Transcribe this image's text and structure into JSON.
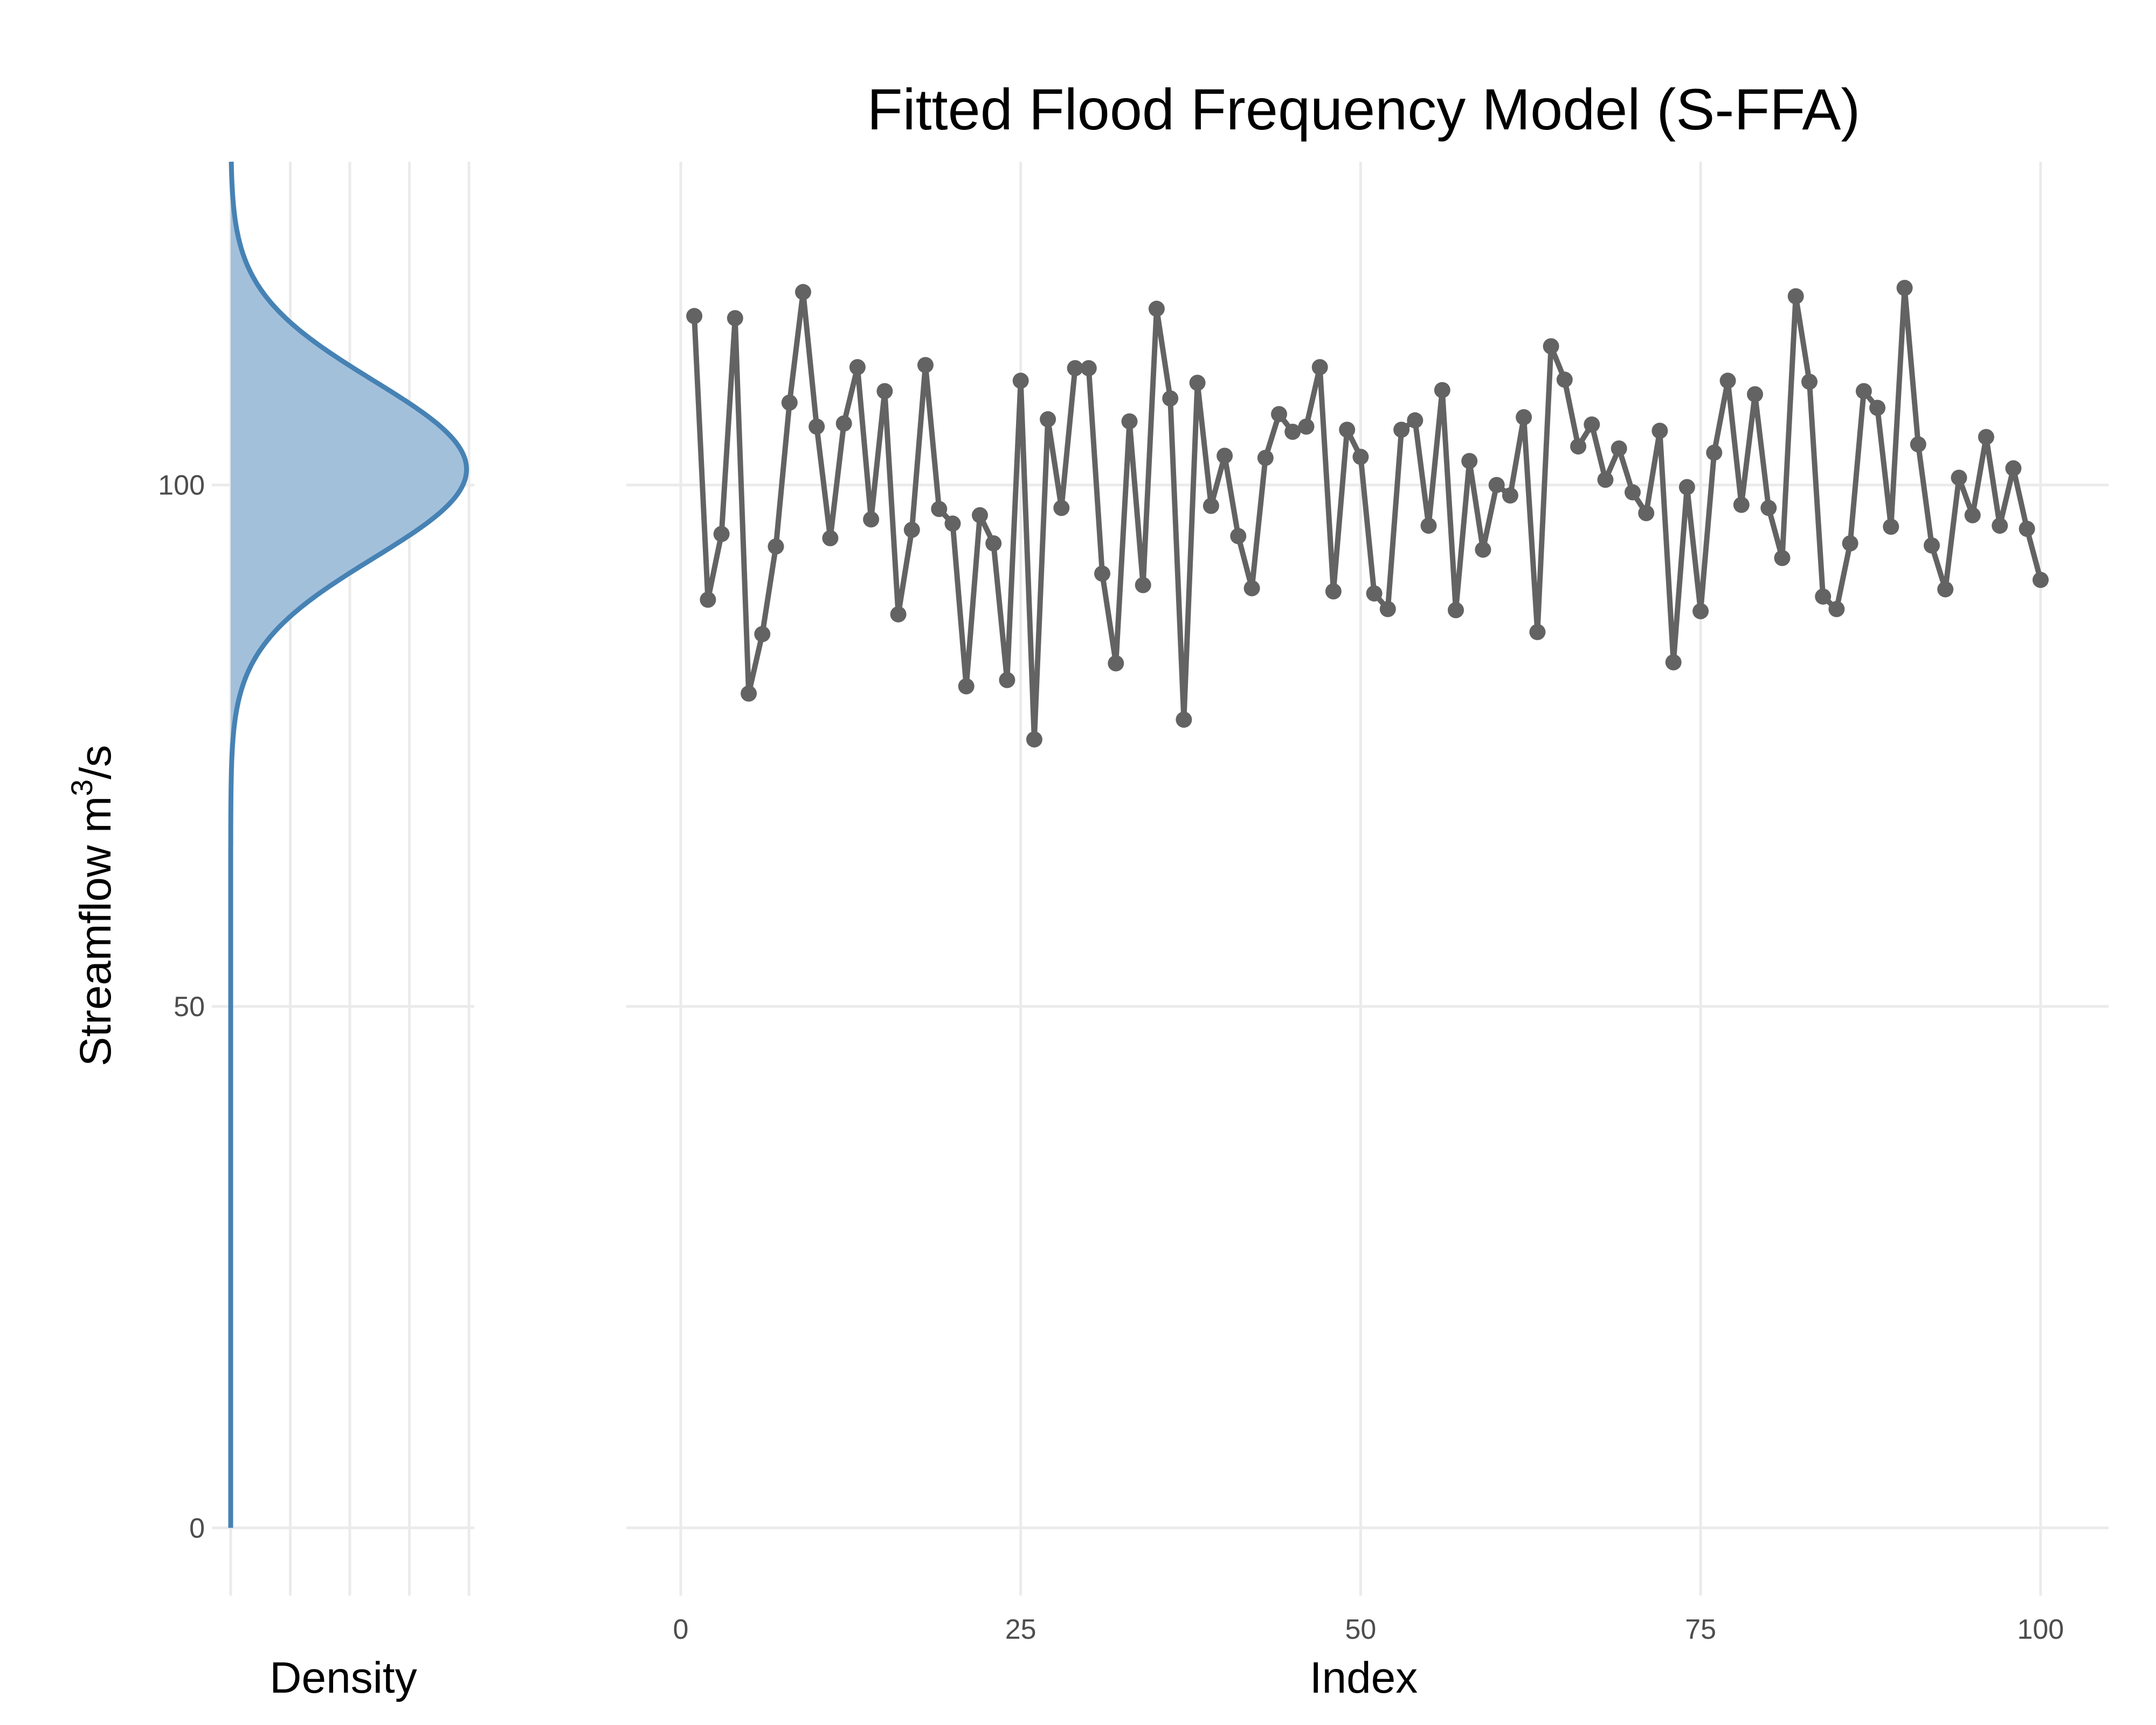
{
  "title": "Fitted Flood Frequency Model (S-FFA)",
  "colors": {
    "series": "#636363",
    "density_line": "#4682b4",
    "density_fill": "#a3c0db",
    "grid": "#ebebeb"
  },
  "chart_data": [
    {
      "type": "area",
      "id": "density-panel",
      "xlabel": "Density",
      "ylabel_main": "Streamflow m",
      "ylabel_sup": "3",
      "ylabel_tail": "/s",
      "ylim": [
        -6.5,
        131
      ],
      "yticks": [
        0,
        50,
        100
      ],
      "density_distribution": {
        "family": "normal",
        "mean": 101.5,
        "sd": 8.5
      },
      "fill_range": [
        72,
        131
      ],
      "line_range": [
        0,
        131
      ],
      "grid": true
    },
    {
      "type": "line",
      "id": "series-panel",
      "xlabel": "Index",
      "ylabel": "",
      "xlim": [
        -4,
        105
      ],
      "ylim": [
        -6.5,
        131
      ],
      "xticks": [
        0,
        25,
        50,
        75,
        100
      ],
      "yticks": [
        0,
        50,
        100
      ],
      "grid": true,
      "x": [
        1,
        2,
        3,
        4,
        5,
        6,
        7,
        8,
        9,
        10,
        11,
        12,
        13,
        14,
        15,
        16,
        17,
        18,
        19,
        20,
        21,
        22,
        23,
        24,
        25,
        26,
        27,
        28,
        29,
        30,
        31,
        32,
        33,
        34,
        35,
        36,
        37,
        38,
        39,
        40,
        41,
        42,
        43,
        44,
        45,
        46,
        47,
        48,
        49,
        50,
        51,
        52,
        53,
        54,
        55,
        56,
        57,
        58,
        59,
        60,
        61,
        62,
        63,
        64,
        65,
        66,
        67,
        68,
        69,
        70,
        71,
        72,
        73,
        74,
        75,
        76,
        77,
        78,
        79,
        80,
        81,
        82,
        83,
        84,
        85,
        86,
        87,
        88,
        89,
        90,
        91,
        92,
        93,
        94,
        95,
        96,
        97,
        98,
        99,
        100
      ],
      "values": [
        116.2,
        89.0,
        95.3,
        116.0,
        80.0,
        85.7,
        94.1,
        107.9,
        118.5,
        105.6,
        94.9,
        105.9,
        111.3,
        96.7,
        109.0,
        87.6,
        95.7,
        111.5,
        97.7,
        96.3,
        80.7,
        97.1,
        94.4,
        81.3,
        110.0,
        75.6,
        106.3,
        97.8,
        111.2,
        111.2,
        91.5,
        82.9,
        106.1,
        90.4,
        116.9,
        108.3,
        77.5,
        109.8,
        98.0,
        102.8,
        95.1,
        90.1,
        102.6,
        106.8,
        105.1,
        105.6,
        111.3,
        89.8,
        105.3,
        102.7,
        89.6,
        88.1,
        105.3,
        106.2,
        96.1,
        109.1,
        88.0,
        102.3,
        93.8,
        100.0,
        99.0,
        106.5,
        85.9,
        113.3,
        110.1,
        103.7,
        105.8,
        100.5,
        103.5,
        99.3,
        97.3,
        105.2,
        83.0,
        99.8,
        87.9,
        103.1,
        110.0,
        98.1,
        108.7,
        97.8,
        93.0,
        118.1,
        109.9,
        89.3,
        88.1,
        94.4,
        109.0,
        107.4,
        96.0,
        118.9,
        103.9,
        94.2,
        90.0,
        100.7,
        97.1,
        104.6,
        96.1,
        101.6,
        95.8,
        90.9
      ]
    }
  ]
}
